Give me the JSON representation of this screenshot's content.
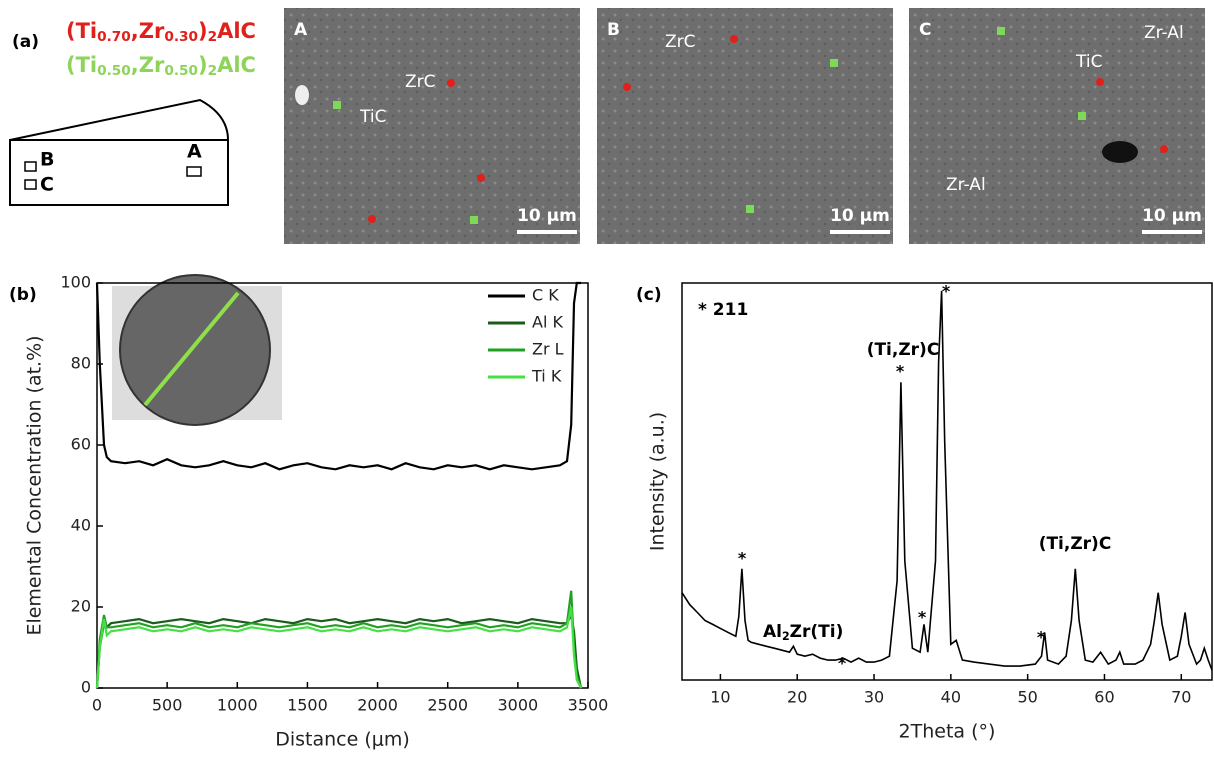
{
  "panel_a": {
    "label": "(a)",
    "formula_red": [
      "(Ti",
      "0.70",
      ",Zr",
      "0.30",
      ")",
      "2",
      "AlC"
    ],
    "formula_green": [
      "(Ti",
      "0.50",
      ",Zr",
      "0.50",
      ")",
      "2",
      "AlC"
    ],
    "schematic_labels": [
      "B",
      "C",
      "A"
    ],
    "images": [
      {
        "letter": "A",
        "labels": [
          "ZrC",
          "TiC"
        ],
        "scale": "10 μm"
      },
      {
        "letter": "B",
        "labels": [
          "ZrC"
        ],
        "scale": "10 μm"
      },
      {
        "letter": "C",
        "labels": [
          "TiC",
          "Zr-Al",
          "Zr-Al"
        ],
        "scale": "10 μm"
      }
    ]
  },
  "chart_data": [
    {
      "type": "line",
      "label": "(b)",
      "xlabel": "Distance (μm)",
      "ylabel": "Elemental Concentration (at.%)",
      "xlim": [
        0,
        3500
      ],
      "ylim": [
        0,
        100
      ],
      "xticks": [
        0,
        500,
        1000,
        1500,
        2000,
        2500,
        3000,
        3500
      ],
      "yticks": [
        0,
        20,
        40,
        60,
        80,
        100
      ],
      "x": [
        0,
        20,
        50,
        70,
        100,
        200,
        300,
        400,
        500,
        600,
        700,
        800,
        900,
        1000,
        1100,
        1200,
        1300,
        1400,
        1500,
        1600,
        1700,
        1800,
        1900,
        2000,
        2100,
        2200,
        2300,
        2400,
        2500,
        2600,
        2700,
        2800,
        2900,
        3000,
        3100,
        3200,
        3300,
        3350,
        3380,
        3400,
        3420,
        3450
      ],
      "series": [
        {
          "name": "C K",
          "color": "#000000",
          "values": [
            100,
            80,
            60,
            57,
            56,
            55.5,
            56,
            55,
            56.5,
            55,
            54.5,
            55,
            56,
            55,
            54.5,
            55.5,
            54,
            55,
            55.5,
            54.5,
            54,
            55,
            54.5,
            55,
            54,
            55.5,
            54.5,
            54,
            55,
            54.5,
            55,
            54,
            55,
            54.5,
            54,
            54.5,
            55,
            56,
            65,
            95,
            100,
            100
          ]
        },
        {
          "name": "Al K",
          "color": "#1a5c1a",
          "values": [
            0,
            10,
            16,
            15,
            16,
            16.5,
            17,
            16,
            16.5,
            17,
            16.5,
            16,
            17,
            16.5,
            16,
            17,
            16.5,
            16,
            17,
            16.5,
            17,
            16,
            16.5,
            17,
            16.5,
            16,
            17,
            16.5,
            17,
            16,
            16.5,
            17,
            16.5,
            16,
            17,
            16.5,
            16,
            16,
            18,
            14,
            5,
            0
          ]
        },
        {
          "name": "Zr L",
          "color": "#22a022",
          "values": [
            0,
            12,
            18,
            15,
            15,
            15.5,
            16,
            15,
            15.5,
            15,
            16,
            15,
            15.5,
            15,
            16,
            15.5,
            15,
            15.5,
            16,
            15,
            15.5,
            15,
            16,
            15,
            15.5,
            15,
            16,
            15.5,
            15,
            15.5,
            16,
            15,
            15.5,
            15,
            16,
            15.5,
            15,
            16,
            24,
            10,
            3,
            0
          ]
        },
        {
          "name": "Ti K",
          "color": "#44e044",
          "values": [
            0,
            10,
            17,
            13,
            14,
            14.5,
            15,
            14,
            14.5,
            14,
            15,
            14,
            14.5,
            14,
            15,
            14.5,
            14,
            14.5,
            15,
            14,
            14.5,
            14,
            15,
            14,
            14.5,
            14,
            15,
            14.5,
            14,
            14.5,
            15,
            14,
            14.5,
            14,
            15,
            14.5,
            14,
            15,
            20,
            8,
            2,
            0
          ]
        }
      ]
    },
    {
      "type": "line",
      "label": "(c)",
      "xlabel": "2Theta (°)",
      "ylabel": "Intensity (a.u.)",
      "xlim": [
        5,
        74
      ],
      "ylim": [
        0,
        100
      ],
      "xticks": [
        10,
        20,
        30,
        40,
        50,
        60,
        70
      ],
      "annotations": [
        "* 211",
        "(Ti,Zr)C",
        "(Ti,Zr)C",
        "*",
        "*",
        "*",
        "*",
        "*",
        "*"
      ],
      "phase_label": [
        "Al",
        "2",
        "Zr(Ti)"
      ],
      "x": [
        5,
        6,
        7,
        8,
        9,
        10,
        11,
        12,
        12.4,
        12.8,
        13.2,
        13.6,
        14,
        15,
        16,
        17,
        18,
        19,
        19.5,
        20,
        21,
        22,
        23,
        24,
        25,
        26,
        27,
        28,
        29,
        30,
        31,
        32,
        33,
        33.5,
        34,
        35,
        36,
        36.5,
        37,
        38,
        38.4,
        38.8,
        39.2,
        40,
        40.7,
        41.5,
        43,
        45,
        47,
        49,
        51,
        51.8,
        52.2,
        52.6,
        54,
        55,
        55.7,
        56.2,
        56.7,
        57.5,
        58.5,
        59.5,
        60.5,
        61.5,
        62,
        62.5,
        64,
        65,
        66,
        66.5,
        67,
        67.5,
        68.5,
        69.5,
        70,
        70.5,
        71,
        72,
        72.5,
        73,
        73.5,
        74
      ],
      "series": [
        {
          "color": "#000000",
          "values": [
            22,
            19,
            17,
            15,
            14,
            13,
            12,
            11,
            16,
            28,
            15,
            10,
            9.5,
            9,
            8.5,
            8,
            7.5,
            7,
            8.5,
            6.5,
            6,
            6.5,
            5.5,
            5,
            5,
            5.5,
            4.5,
            5.5,
            4.5,
            4.5,
            5,
            6,
            25,
            75,
            30,
            8,
            7,
            14,
            7,
            30,
            80,
            98,
            60,
            9,
            10,
            5,
            4.5,
            4,
            3.5,
            3.5,
            4,
            6,
            12,
            5,
            4,
            6,
            15,
            28,
            15,
            5,
            4.5,
            7,
            4,
            5,
            7,
            4,
            4,
            5,
            9,
            15,
            22,
            14,
            5,
            6,
            11,
            17,
            9,
            4,
            5,
            8,
            5,
            2.5
          ]
        }
      ]
    }
  ]
}
